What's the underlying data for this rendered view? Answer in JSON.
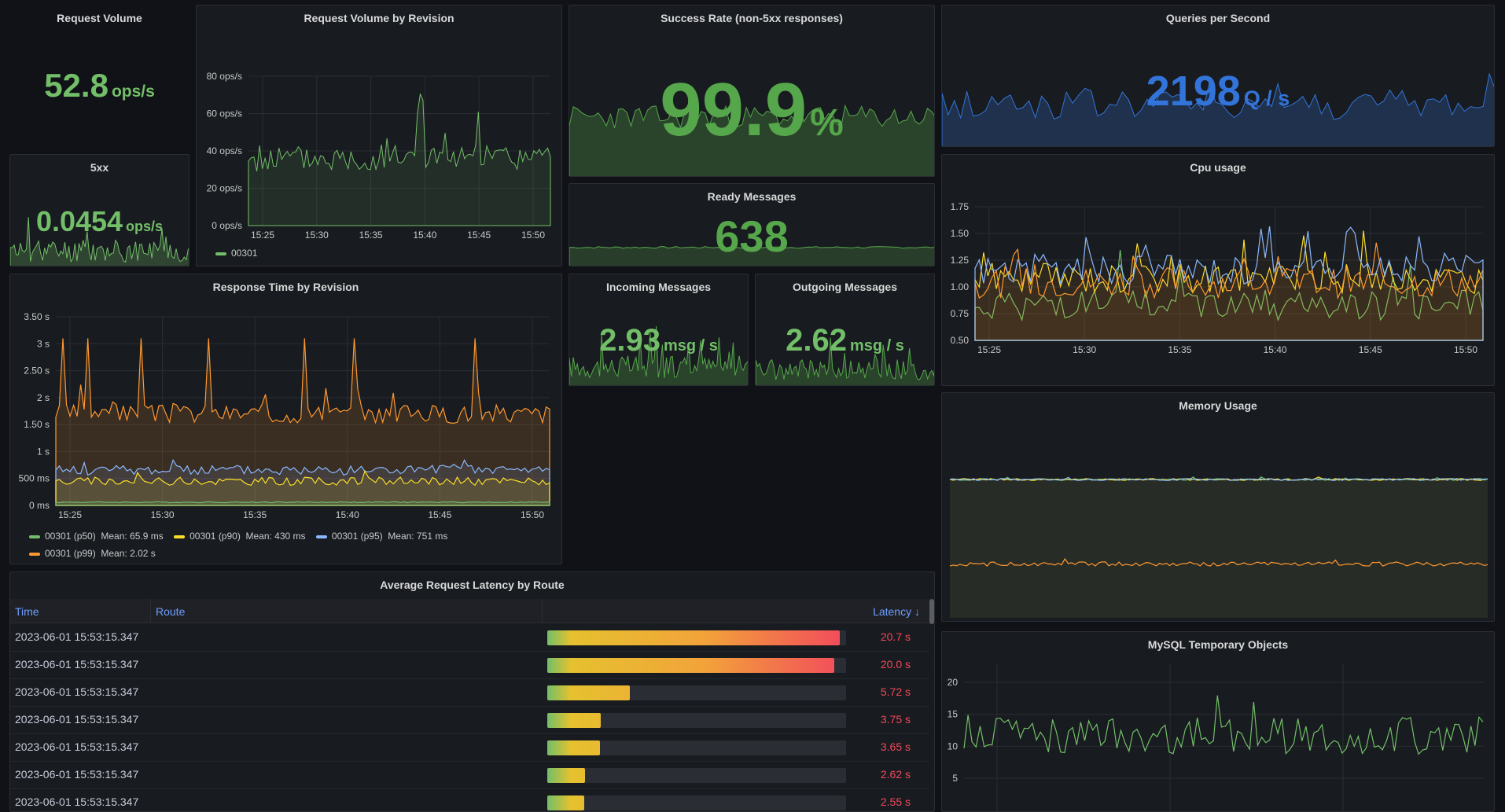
{
  "colors": {
    "green": "#73bf69",
    "stat_green": "#56a64b",
    "yellow": "#fade2a",
    "orange": "#ff9830",
    "blue": "#8ab8ff",
    "qps_blue": "#3274d9",
    "red": "#f2495c"
  },
  "request_volume": {
    "title": "Request Volume",
    "value": "52.8",
    "unit": "ops/s"
  },
  "fivexx": {
    "title": "5xx",
    "value": "0.0454",
    "unit": "ops/s"
  },
  "rev_volume": {
    "title": "Request Volume by Revision",
    "yticks": [
      "80 ops/s",
      "60 ops/s",
      "40 ops/s",
      "20 ops/s",
      "0 ops/s"
    ],
    "xticks": [
      "15:25",
      "15:30",
      "15:35",
      "15:40",
      "15:45",
      "15:50"
    ],
    "legend": "00301"
  },
  "success_rate": {
    "title": "Success Rate (non-5xx responses)",
    "value": "99.9",
    "unit": "%"
  },
  "ready_messages": {
    "title": "Ready Messages",
    "value": "638"
  },
  "qps": {
    "title": "Queries per Second",
    "value": "2198",
    "unit": "Q / s"
  },
  "response_time": {
    "title": "Response Time by Revision",
    "yticks": [
      "3.50 s",
      "3 s",
      "2.50 s",
      "2 s",
      "1.50 s",
      "1 s",
      "500 ms",
      "0 ms"
    ],
    "xticks": [
      "15:25",
      "15:30",
      "15:35",
      "15:40",
      "15:45",
      "15:50"
    ],
    "legend": [
      {
        "name": "00301 (p50)",
        "mean": "Mean: 65.9 ms",
        "color": "#73bf69"
      },
      {
        "name": "00301 (p90)",
        "mean": "Mean: 430 ms",
        "color": "#fade2a"
      },
      {
        "name": "00301 (p95)",
        "mean": "Mean: 751 ms",
        "color": "#8ab8ff"
      },
      {
        "name": "00301 (p99)",
        "mean": "Mean: 2.02 s",
        "color": "#ff9830"
      }
    ]
  },
  "incoming": {
    "title": "Incoming Messages",
    "value": "2.93",
    "unit": "msg / s"
  },
  "outgoing": {
    "title": "Outgoing Messages",
    "value": "2.62",
    "unit": "msg / s"
  },
  "cpu": {
    "title": "Cpu usage",
    "yticks": [
      "1.75",
      "1.50",
      "1.25",
      "1.00",
      "0.75",
      "0.50"
    ],
    "xticks": [
      "15:25",
      "15:30",
      "15:35",
      "15:40",
      "15:45",
      "15:50"
    ]
  },
  "memory": {
    "title": "Memory Usage"
  },
  "mysql": {
    "title": "MySQL Temporary Objects",
    "yticks": [
      "20",
      "15",
      "10",
      "5"
    ]
  },
  "latency_table": {
    "title": "Average Request Latency by Route",
    "columns": {
      "time": "Time",
      "route": "Route",
      "latency": "Latency ↓"
    },
    "rows": [
      {
        "time": "2023-06-01 15:53:15.347",
        "route": "",
        "fill": 0.98,
        "latency": "20.7 s"
      },
      {
        "time": "2023-06-01 15:53:15.347",
        "route": "",
        "fill": 0.96,
        "latency": "20.0 s"
      },
      {
        "time": "2023-06-01 15:53:15.347",
        "route": "",
        "fill": 0.275,
        "latency": "5.72 s"
      },
      {
        "time": "2023-06-01 15:53:15.347",
        "route": "",
        "fill": 0.18,
        "latency": "3.75 s"
      },
      {
        "time": "2023-06-01 15:53:15.347",
        "route": "",
        "fill": 0.176,
        "latency": "3.65 s"
      },
      {
        "time": "2023-06-01 15:53:15.347",
        "route": "",
        "fill": 0.126,
        "latency": "2.62 s"
      },
      {
        "time": "2023-06-01 15:53:15.347",
        "route": "",
        "fill": 0.123,
        "latency": "2.55 s"
      }
    ]
  }
}
